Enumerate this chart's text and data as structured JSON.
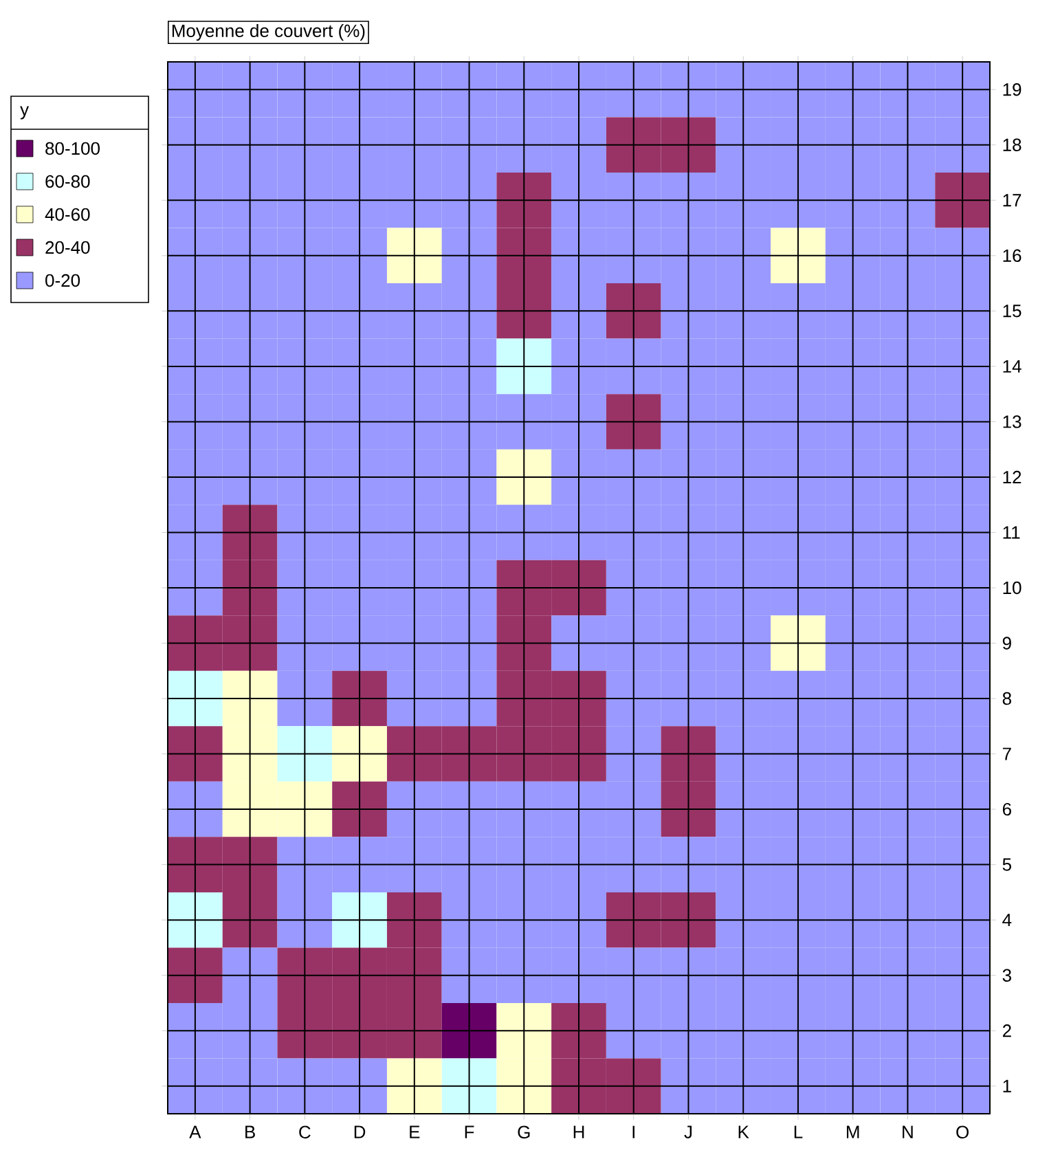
{
  "chart_data": {
    "type": "heatmap",
    "title": "Moyenne de couvert (%)",
    "clabel": "y",
    "categories": [
      "A",
      "B",
      "C",
      "D",
      "E",
      "F",
      "G",
      "H",
      "I",
      "J",
      "K",
      "L",
      "M",
      "N",
      "O"
    ],
    "y_categories": [
      "19",
      "18",
      "17",
      "16",
      "15",
      "14",
      "13",
      "12",
      "11",
      "10",
      "9",
      "8",
      "7",
      "6",
      "5",
      "4",
      "3",
      "2",
      "1"
    ],
    "cells": [
      [
        10,
        10,
        10,
        10,
        10,
        10,
        10,
        10,
        10,
        10,
        10,
        10,
        10,
        10,
        10
      ],
      [
        10,
        10,
        10,
        10,
        10,
        10,
        10,
        10,
        30,
        30,
        10,
        10,
        10,
        10,
        10
      ],
      [
        10,
        10,
        10,
        10,
        10,
        10,
        30,
        10,
        10,
        10,
        10,
        10,
        10,
        10,
        30
      ],
      [
        10,
        10,
        10,
        10,
        50,
        10,
        30,
        10,
        10,
        10,
        10,
        50,
        10,
        10,
        10
      ],
      [
        10,
        10,
        10,
        10,
        10,
        10,
        30,
        10,
        30,
        10,
        10,
        10,
        10,
        10,
        10
      ],
      [
        10,
        10,
        10,
        10,
        10,
        10,
        70,
        10,
        10,
        10,
        10,
        10,
        10,
        10,
        10
      ],
      [
        10,
        10,
        10,
        10,
        10,
        10,
        10,
        10,
        30,
        10,
        10,
        10,
        10,
        10,
        10
      ],
      [
        10,
        10,
        10,
        10,
        10,
        10,
        50,
        10,
        10,
        10,
        10,
        10,
        10,
        10,
        10
      ],
      [
        10,
        30,
        10,
        10,
        10,
        10,
        10,
        10,
        10,
        10,
        10,
        10,
        10,
        10,
        10
      ],
      [
        10,
        30,
        10,
        10,
        10,
        10,
        30,
        30,
        10,
        10,
        10,
        10,
        10,
        10,
        10
      ],
      [
        30,
        30,
        10,
        10,
        10,
        10,
        30,
        10,
        10,
        10,
        10,
        50,
        10,
        10,
        10
      ],
      [
        70,
        50,
        10,
        30,
        10,
        10,
        30,
        30,
        10,
        10,
        10,
        10,
        10,
        10,
        10
      ],
      [
        30,
        50,
        70,
        50,
        30,
        30,
        30,
        30,
        10,
        30,
        10,
        10,
        10,
        10,
        10
      ],
      [
        10,
        50,
        50,
        30,
        10,
        10,
        10,
        10,
        10,
        30,
        10,
        10,
        10,
        10,
        10
      ],
      [
        30,
        30,
        10,
        10,
        10,
        10,
        10,
        10,
        10,
        10,
        10,
        10,
        10,
        10,
        10
      ],
      [
        70,
        30,
        10,
        70,
        30,
        10,
        10,
        10,
        30,
        30,
        10,
        10,
        10,
        10,
        10
      ],
      [
        30,
        10,
        30,
        30,
        30,
        10,
        10,
        10,
        10,
        10,
        10,
        10,
        10,
        10,
        10
      ],
      [
        10,
        10,
        30,
        30,
        30,
        90,
        50,
        30,
        10,
        10,
        10,
        10,
        10,
        10,
        10
      ],
      [
        10,
        10,
        10,
        10,
        50,
        70,
        50,
        30,
        30,
        10,
        10,
        10,
        10,
        10,
        10
      ]
    ],
    "clim": [
      0,
      100
    ],
    "cticks": [
      {
        "value": 10,
        "label": "0-20"
      },
      {
        "value": 30,
        "label": "20-40"
      },
      {
        "value": 50,
        "label": "40-60"
      },
      {
        "value": 70,
        "label": "60-80"
      },
      {
        "value": 90,
        "label": "80-100"
      }
    ],
    "colors": [
      "#9999ff",
      "#993366",
      "#ffffcc",
      "#ccffff",
      "#660066"
    ],
    "grid": true
  }
}
